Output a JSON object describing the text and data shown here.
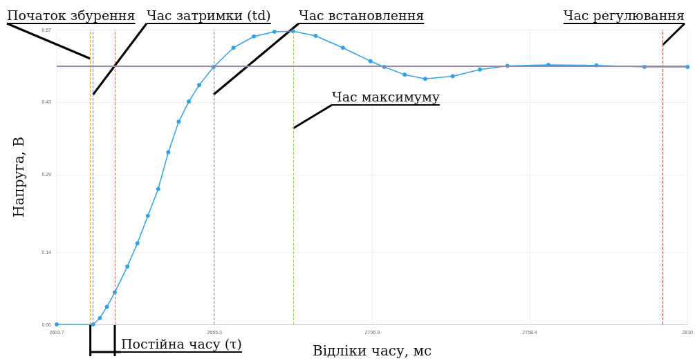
{
  "chart_data": {
    "type": "line",
    "xlabel": "Відліки часу, мс",
    "ylabel": "Напруга, В",
    "xlim": [
      2603.7,
      2810
    ],
    "xticks": [
      2603.7,
      2655.3,
      2706.9,
      2758.4,
      {
        "value": 2810,
        "label": "2810"
      }
    ],
    "ylim": [
      0,
      0.57
    ],
    "yticks": [
      {
        "value": 0,
        "label": "0.00"
      },
      0.14,
      0.29,
      0.43,
      0.57
    ],
    "grid": true,
    "marker": "circle",
    "line_style": "solid",
    "series": [
      {
        "color": "#2ea2e6",
        "x": [
          2603.7,
          2615.6,
          2617.8,
          2620.1,
          2622.7,
          2626.8,
          2630.1,
          2633.5,
          2636.9,
          2640.2,
          2643.6,
          2646.9,
          2650.3,
          2655.0,
          2661.5,
          2668.2,
          2674.9,
          2681.0,
          2688.4,
          2697.3,
          2706.3,
          2710.8,
          2717.5,
          2724.2,
          2733.2,
          2742.1,
          2751.1,
          2764.5,
          2780.2,
          2795.9,
          2810.0
        ],
        "values": [
          0,
          0,
          0.012,
          0.034,
          0.062,
          0.112,
          0.157,
          0.21,
          0.262,
          0.333,
          0.392,
          0.431,
          0.463,
          0.498,
          0.535,
          0.557,
          0.566,
          0.567,
          0.558,
          0.535,
          0.509,
          0.498,
          0.483,
          0.475,
          0.48,
          0.493,
          0.5,
          0.502,
          0.501,
          0.498,
          0.498
        ]
      }
    ],
    "ref_lines": [
      {
        "axis": "x",
        "value": 2614.7,
        "label": "Початок збурення",
        "color": "#f0a030",
        "line_style": "dashed"
      },
      {
        "axis": "x",
        "value": 2615.6,
        "label": "Час затримки (td)",
        "color": "#7f7fe0",
        "line_style": "dashed"
      },
      {
        "axis": "x",
        "value": 2622.7,
        "label": "Постійна часу (τ)",
        "color": "#e07060",
        "line_style": "dashed"
      },
      {
        "axis": "x",
        "value": 2655.0,
        "label": "Час встановлення",
        "color": "#40b0e8",
        "line_style": "dashed"
      },
      {
        "axis": "x",
        "value": 2681.0,
        "label": "Час максимуму",
        "color": "#a0d060",
        "line_style": "dashed"
      },
      {
        "axis": "x",
        "value": 2801.9,
        "label": "Час регулювання",
        "color": "#d04040",
        "line_style": "dashed"
      },
      {
        "axis": "y",
        "value": 0.498,
        "color": "#9a88a8",
        "line_style": "solid"
      }
    ]
  }
}
